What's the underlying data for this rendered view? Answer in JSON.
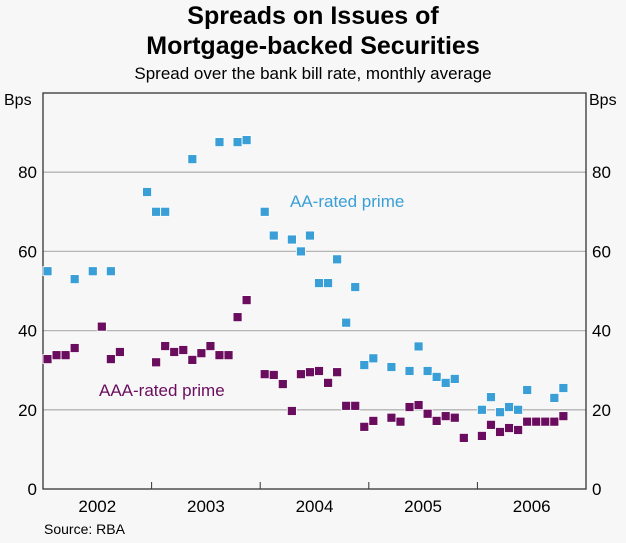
{
  "chart_data": {
    "type": "scatter",
    "title": "Spreads on Issues of Mortgage-backed Securities",
    "title_lines": [
      "Spreads on Issues of",
      "Mortgage-backed Securities"
    ],
    "subtitle": "Spread over the bank bill rate, monthly average",
    "ylabel_left": "Bps",
    "ylabel_right": "Bps",
    "ylim": [
      0,
      100
    ],
    "yticks": [
      0,
      20,
      40,
      60,
      80
    ],
    "xlim": [
      "2002-01",
      "2006-12"
    ],
    "xtick_labels": [
      "2002",
      "2003",
      "2004",
      "2005",
      "2006"
    ],
    "grid": true,
    "source": "Source: RBA",
    "series": [
      {
        "name": "AA-rated prime",
        "color": "#3a9fd6",
        "points": [
          [
            "2002-01",
            55
          ],
          [
            "2002-04",
            53
          ],
          [
            "2002-06",
            55
          ],
          [
            "2002-08",
            55
          ],
          [
            "2002-12",
            75
          ],
          [
            "2003-01",
            70
          ],
          [
            "2003-02",
            70
          ],
          [
            "2003-05",
            83.3
          ],
          [
            "2003-08",
            87.6
          ],
          [
            "2003-10",
            87.6
          ],
          [
            "2003-11",
            88.1
          ],
          [
            "2004-01",
            70
          ],
          [
            "2004-02",
            64
          ],
          [
            "2004-04",
            63
          ],
          [
            "2004-05",
            60
          ],
          [
            "2004-06",
            64
          ],
          [
            "2004-07",
            52
          ],
          [
            "2004-08",
            52
          ],
          [
            "2004-09",
            58
          ],
          [
            "2004-10",
            42
          ],
          [
            "2004-11",
            51
          ],
          [
            "2004-12",
            31.3
          ],
          [
            "2005-01",
            33
          ],
          [
            "2005-03",
            30.8
          ],
          [
            "2005-05",
            29.8
          ],
          [
            "2005-06",
            36
          ],
          [
            "2005-07",
            29.8
          ],
          [
            "2005-08",
            28.3
          ],
          [
            "2005-09",
            26.8
          ],
          [
            "2005-10",
            27.8
          ],
          [
            "2006-01",
            20
          ],
          [
            "2006-02",
            23.2
          ],
          [
            "2006-03",
            19.4
          ],
          [
            "2006-04",
            20.7
          ],
          [
            "2006-05",
            20
          ],
          [
            "2006-06",
            25
          ],
          [
            "2006-09",
            23
          ],
          [
            "2006-10",
            25.5
          ]
        ]
      },
      {
        "name": "AAA-rated prime",
        "color": "#6a0d5e",
        "points": [
          [
            "2002-01",
            32.8
          ],
          [
            "2002-02",
            33.8
          ],
          [
            "2002-03",
            33.8
          ],
          [
            "2002-04",
            35.6
          ],
          [
            "2002-07",
            41
          ],
          [
            "2002-08",
            32.8
          ],
          [
            "2002-09",
            34.6
          ],
          [
            "2003-01",
            32
          ],
          [
            "2003-02",
            36.1
          ],
          [
            "2003-03",
            34.6
          ],
          [
            "2003-04",
            35.1
          ],
          [
            "2003-05",
            32.6
          ],
          [
            "2003-06",
            34.3
          ],
          [
            "2003-07",
            36.1
          ],
          [
            "2003-08",
            33.8
          ],
          [
            "2003-09",
            33.8
          ],
          [
            "2003-10",
            43.4
          ],
          [
            "2003-11",
            47.7
          ],
          [
            "2004-01",
            29
          ],
          [
            "2004-02",
            28.8
          ],
          [
            "2004-03",
            26.5
          ],
          [
            "2004-04",
            19.7
          ],
          [
            "2004-05",
            29
          ],
          [
            "2004-06",
            29.5
          ],
          [
            "2004-07",
            29.8
          ],
          [
            "2004-08",
            26.8
          ],
          [
            "2004-09",
            29.5
          ],
          [
            "2004-10",
            21
          ],
          [
            "2004-11",
            21
          ],
          [
            "2004-12",
            15.7
          ],
          [
            "2005-01",
            17.2
          ],
          [
            "2005-03",
            18
          ],
          [
            "2005-04",
            17
          ],
          [
            "2005-05",
            20.7
          ],
          [
            "2005-06",
            21.2
          ],
          [
            "2005-07",
            19
          ],
          [
            "2005-08",
            17.2
          ],
          [
            "2005-09",
            18.4
          ],
          [
            "2005-10",
            18
          ],
          [
            "2005-11",
            12.9
          ],
          [
            "2006-01",
            13.4
          ],
          [
            "2006-02",
            16.2
          ],
          [
            "2006-03",
            14.4
          ],
          [
            "2006-04",
            15.4
          ],
          [
            "2006-05",
            14.9
          ],
          [
            "2006-06",
            17
          ],
          [
            "2006-07",
            17
          ],
          [
            "2006-08",
            17
          ],
          [
            "2006-09",
            17
          ],
          [
            "2006-10",
            18.4
          ]
        ]
      }
    ]
  }
}
